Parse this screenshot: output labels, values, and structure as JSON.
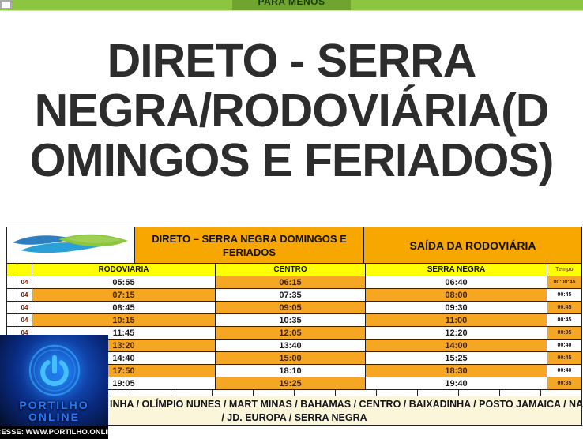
{
  "top_bar": {
    "label": "PARA MENOS"
  },
  "title": {
    "full": "DIRETO - SERRA NEGRA/RODOVIÁRIA(DOMINGOS E FERIADOS)",
    "lines": [
      "DIRETO - SERRA",
      "NEGRA/RODOVIÁRIA(D",
      "OMINGOS E FERIADOS)"
    ]
  },
  "timetable": {
    "header": {
      "route_title": "DIRETO –  SERRA NEGRA DOMINGOS E FERIADOS",
      "departure_title": "SAÍDA DA RODOVIÁRIA"
    },
    "columns": {
      "rodoviaria": "RODOVIÁRIA",
      "centro": "CENTRO",
      "serra_negra": "SERRA NEGRA",
      "tempo": "Tempo"
    },
    "line_number": "04",
    "rows": [
      {
        "rodoviaria": "05:55",
        "centro": "06:15",
        "serra_negra": "06:40",
        "tempo": "00:00:45"
      },
      {
        "rodoviaria": "07:15",
        "centro": "07:35",
        "serra_negra": "08:00",
        "tempo": "00:45"
      },
      {
        "rodoviaria": "08:45",
        "centro": "09:05",
        "serra_negra": "09:30",
        "tempo": "00:45"
      },
      {
        "rodoviaria": "10:15",
        "centro": "10:35",
        "serra_negra": "11:00",
        "tempo": "00:45"
      },
      {
        "rodoviaria": "11:45",
        "centro": "12:05",
        "serra_negra": "12:20",
        "tempo": "00:35"
      },
      {
        "rodoviaria": "13:20",
        "centro": "13:40",
        "serra_negra": "14:00",
        "tempo": "00:40"
      },
      {
        "rodoviaria": "14:40",
        "centro": "15:00",
        "serra_negra": "15:25",
        "tempo": "00:45"
      },
      {
        "rodoviaria": "17:50",
        "centro": "18:10",
        "serra_negra": "18:30",
        "tempo": "00:40"
      },
      {
        "rodoviaria": "19:05",
        "centro": "19:25",
        "serra_negra": "19:40",
        "tempo": "00:35"
      }
    ]
  },
  "route_note": {
    "line1": "INHA / OLÍMPIO NUNES / MART MINAS / BAHAMAS / CENTRO / BAIXADINHA / POSTO JAMAICA / NAÇÕES",
    "line2": "/ JD. EUROPA / SERRA NEGRA"
  },
  "watermark": {
    "name_line1": "PORTILHO",
    "name_line2": "ONLINE",
    "banner": "ACESSE: WWW.PORTILHO.ONLINE"
  },
  "colors": {
    "banner_green": "#8CC63E",
    "header_orange": "#F8A700",
    "row_orange": "#F5A623",
    "column_yellow": "#FFFF00",
    "note_cream": "#FBF6DA",
    "watermark_blue": "#1F7BFF"
  }
}
